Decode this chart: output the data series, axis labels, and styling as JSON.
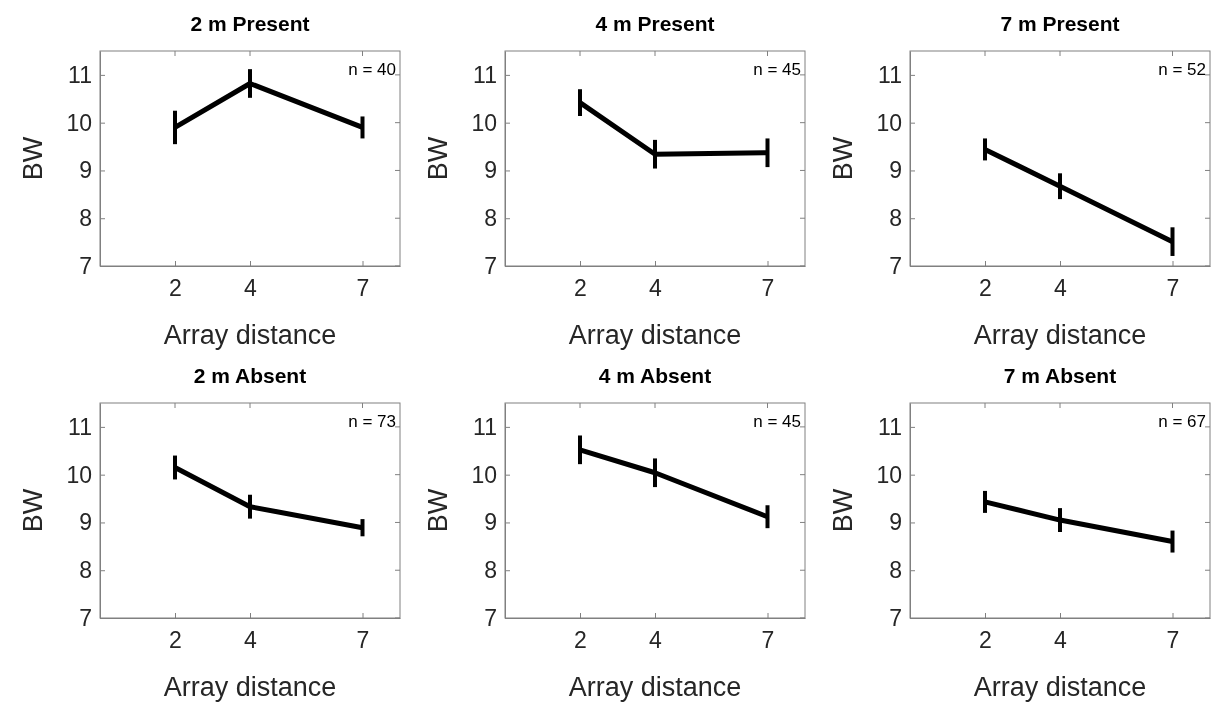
{
  "chart_data": [
    {
      "type": "line",
      "title": "2 m Present",
      "xlabel": "Array distance",
      "ylabel": "BW",
      "x": [
        2,
        4,
        7
      ],
      "xlim": [
        0,
        8
      ],
      "xticks": [
        2,
        4,
        7
      ],
      "ylim": [
        7,
        11.5
      ],
      "yticks": [
        7,
        8,
        9,
        10,
        11
      ],
      "annotations": [
        "n = 40"
      ],
      "series": [
        {
          "color": "#000000",
          "values": [
            9.9,
            10.82,
            9.9
          ],
          "errors": [
            0.35,
            0.3,
            0.23
          ]
        }
      ]
    },
    {
      "type": "line",
      "title": "4 m Present",
      "xlabel": "Array distance",
      "ylabel": "BW",
      "x": [
        2,
        4,
        7
      ],
      "xlim": [
        0,
        8
      ],
      "xticks": [
        2,
        4,
        7
      ],
      "ylim": [
        7,
        11.5
      ],
      "yticks": [
        7,
        8,
        9,
        10,
        11
      ],
      "annotations": [
        "n = 45"
      ],
      "series": [
        {
          "color": "#000000",
          "values": [
            10.42,
            9.34,
            9.37
          ],
          "errors": [
            0.28,
            0.3,
            0.3
          ]
        }
      ]
    },
    {
      "type": "line",
      "title": "7 m Present",
      "xlabel": "Array distance",
      "ylabel": "BW",
      "x": [
        2,
        4,
        7
      ],
      "xlim": [
        0,
        8
      ],
      "xticks": [
        2,
        4,
        7
      ],
      "ylim": [
        7,
        11.5
      ],
      "yticks": [
        7,
        8,
        9,
        10,
        11
      ],
      "annotations": [
        "n = 52"
      ],
      "series": [
        {
          "color": "#000000",
          "values": [
            9.44,
            8.67,
            7.51
          ],
          "errors": [
            0.23,
            0.27,
            0.3
          ]
        }
      ]
    },
    {
      "type": "line",
      "title": "2 m Absent",
      "xlabel": "Array distance",
      "ylabel": "BW",
      "x": [
        2,
        4,
        7
      ],
      "xlim": [
        0,
        8
      ],
      "xticks": [
        2,
        4,
        7
      ],
      "ylim": [
        7,
        11.5
      ],
      "yticks": [
        7,
        8,
        9,
        10,
        11
      ],
      "annotations": [
        "n = 73"
      ],
      "series": [
        {
          "color": "#000000",
          "values": [
            10.15,
            9.33,
            8.89
          ],
          "errors": [
            0.25,
            0.25,
            0.18
          ]
        }
      ]
    },
    {
      "type": "line",
      "title": "4 m Absent",
      "xlabel": "Array distance",
      "ylabel": "BW",
      "x": [
        2,
        4,
        7
      ],
      "xlim": [
        0,
        8
      ],
      "xticks": [
        2,
        4,
        7
      ],
      "ylim": [
        7,
        11.5
      ],
      "yticks": [
        7,
        8,
        9,
        10,
        11
      ],
      "annotations": [
        "n = 45"
      ],
      "series": [
        {
          "color": "#000000",
          "values": [
            10.52,
            10.04,
            9.12
          ],
          "errors": [
            0.3,
            0.3,
            0.24
          ]
        }
      ]
    },
    {
      "type": "line",
      "title": "7 m Absent",
      "xlabel": "Array distance",
      "ylabel": "BW",
      "x": [
        2,
        4,
        7
      ],
      "xlim": [
        0,
        8
      ],
      "xticks": [
        2,
        4,
        7
      ],
      "ylim": [
        7,
        11.5
      ],
      "yticks": [
        7,
        8,
        9,
        10,
        11
      ],
      "annotations": [
        "n = 67"
      ],
      "series": [
        {
          "color": "#000000",
          "values": [
            9.43,
            9.05,
            8.6
          ],
          "errors": [
            0.23,
            0.25,
            0.23
          ]
        }
      ]
    }
  ]
}
